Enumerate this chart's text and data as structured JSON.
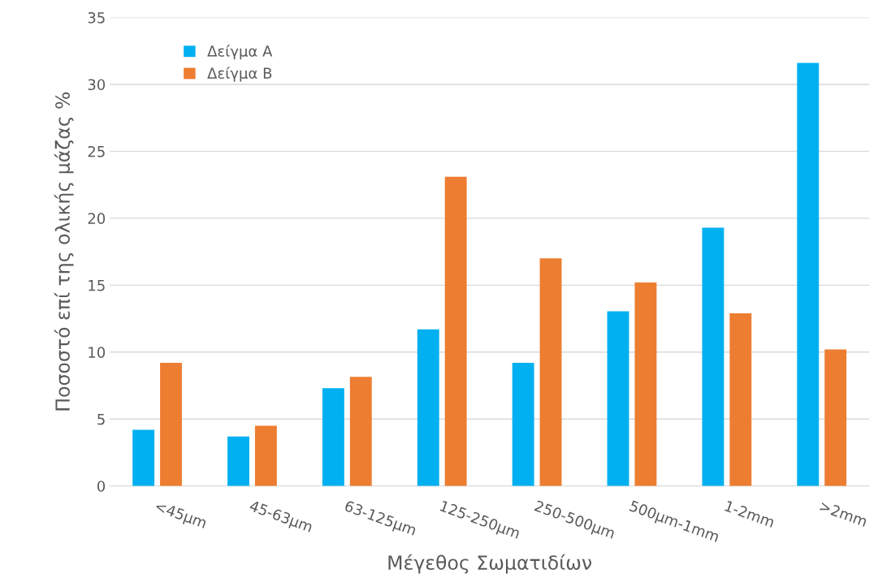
{
  "chart_data": {
    "type": "bar",
    "xlabel": "Μέγεθος Σωματιδίων",
    "ylabel": "Ποσοστό επί της ολικής μάζας %",
    "categories": [
      "<45μm",
      "45-63μm",
      "63-125μm",
      "125-250μm",
      "250-500μm",
      "500μm-1mm",
      "1-2mm",
      ">2mm"
    ],
    "series": [
      {
        "name": "Δείγμα Α",
        "color": "#00b0f0",
        "values": [
          4.2,
          3.7,
          7.3,
          11.7,
          9.2,
          13.05,
          19.3,
          31.6
        ]
      },
      {
        "name": "Δείγμα Β",
        "color": "#ed7d31",
        "values": [
          9.2,
          4.5,
          8.15,
          23.1,
          17,
          15.2,
          12.9,
          10.2
        ]
      }
    ],
    "ylim": [
      0,
      35
    ],
    "yticks": [
      0,
      5,
      10,
      15,
      20,
      25,
      30,
      35
    ],
    "grid": "y",
    "legend": "top left"
  }
}
